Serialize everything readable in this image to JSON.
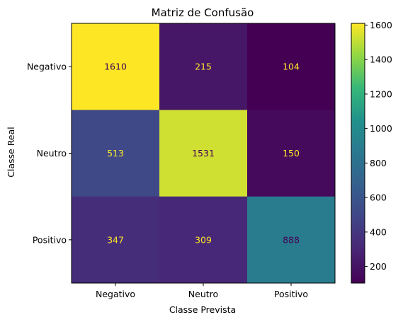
{
  "chart_data": {
    "type": "heatmap",
    "title": "Matriz de Confusão",
    "xlabel": "Classe Prevista",
    "ylabel": "Classe Real",
    "x_categories": [
      "Negativo",
      "Neutro",
      "Positivo"
    ],
    "y_categories": [
      "Negativo",
      "Neutro",
      "Positivo"
    ],
    "values": [
      [
        1610,
        215,
        104
      ],
      [
        513,
        1531,
        150
      ],
      [
        347,
        309,
        888
      ]
    ],
    "colormap": "viridis",
    "color_range": [
      104,
      1610
    ],
    "colorbar_ticks": [
      "200",
      "400",
      "600",
      "800",
      "1000",
      "1200",
      "1400",
      "1600"
    ],
    "colorbar_tick_values": [
      200,
      400,
      600,
      800,
      1000,
      1200,
      1400,
      1600
    ],
    "text_color_light": "#fde725",
    "text_color_dark": "#440154",
    "grid": false
  }
}
